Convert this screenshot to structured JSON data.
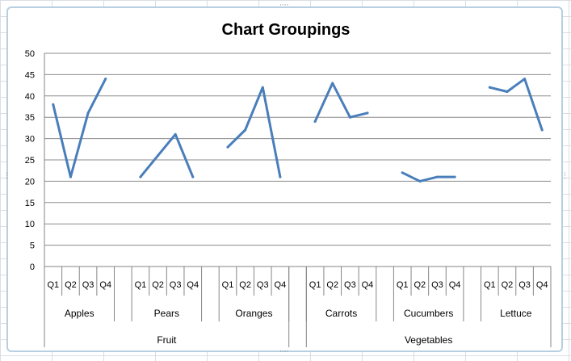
{
  "chart_data": {
    "type": "line",
    "title": "Chart Groupings",
    "xlabel": "",
    "ylabel": "",
    "ylim": [
      0,
      50
    ],
    "yticks": [
      "0",
      "5",
      "10",
      "15",
      "20",
      "25",
      "30",
      "35",
      "40",
      "45",
      "50"
    ],
    "grid": true,
    "legend": "none",
    "quarters": [
      "Q1",
      "Q2",
      "Q3",
      "Q4"
    ],
    "groups": [
      {
        "label": "Fruit",
        "items": [
          {
            "label": "Apples",
            "values": [
              38,
              21,
              36,
              44
            ]
          },
          {
            "label": "Pears",
            "values": [
              21,
              26,
              31,
              21
            ]
          },
          {
            "label": "Oranges",
            "values": [
              28,
              32,
              42,
              21
            ]
          }
        ]
      },
      {
        "label": "Vegetables",
        "items": [
          {
            "label": "Carrots",
            "values": [
              34,
              43,
              35,
              36
            ]
          },
          {
            "label": "Cucumbers",
            "values": [
              22,
              20,
              21,
              21
            ]
          },
          {
            "label": "Lettuce",
            "values": [
              42,
              41,
              44,
              32
            ]
          }
        ]
      }
    ],
    "line_color": "#4a7ebb"
  }
}
